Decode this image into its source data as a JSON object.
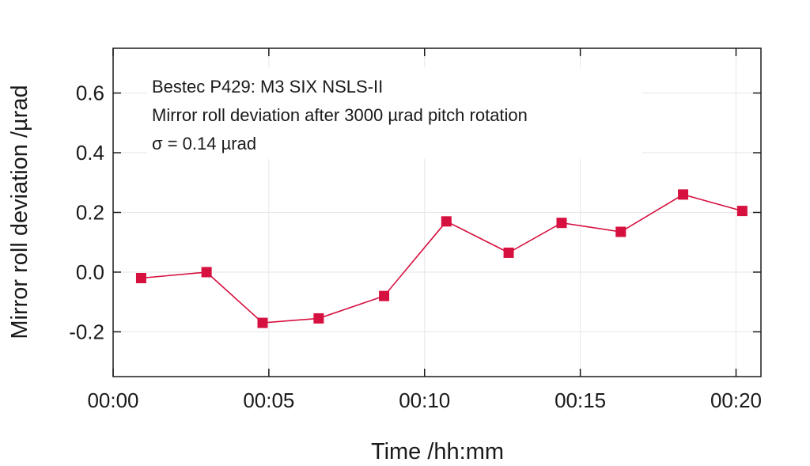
{
  "chart_data": {
    "type": "line",
    "title": "",
    "xlabel": "Time /hh:mm",
    "ylabel": "Mirror roll deviation /µrad",
    "x_unit": "minutes",
    "xlim": [
      0,
      20.8
    ],
    "ylim": [
      -0.35,
      0.75
    ],
    "x_ticks": [
      0,
      5,
      10,
      15,
      20
    ],
    "x_tick_labels": [
      "00:00",
      "00:05",
      "00:10",
      "00:15",
      "00:20"
    ],
    "y_ticks": [
      -0.2,
      0.0,
      0.2,
      0.4,
      0.6
    ],
    "y_tick_labels": [
      "-0.2",
      "0.0",
      "0.2",
      "0.4",
      "0.6"
    ],
    "grid": true,
    "annotations": [
      "Bestec P429: M3 SIX NSLS-II",
      "Mirror roll deviation after 3000 µrad pitch rotation",
      "σ = 0.14 µrad"
    ],
    "series": [
      {
        "color": "#d6103f",
        "marker": "square",
        "x": [
          0.9,
          3.0,
          4.8,
          6.6,
          8.7,
          10.7,
          12.7,
          14.4,
          16.3,
          18.3,
          20.2
        ],
        "y": [
          -0.02,
          0.0,
          -0.17,
          -0.155,
          -0.08,
          0.17,
          0.065,
          0.165,
          0.135,
          0.26,
          0.205
        ]
      }
    ]
  }
}
